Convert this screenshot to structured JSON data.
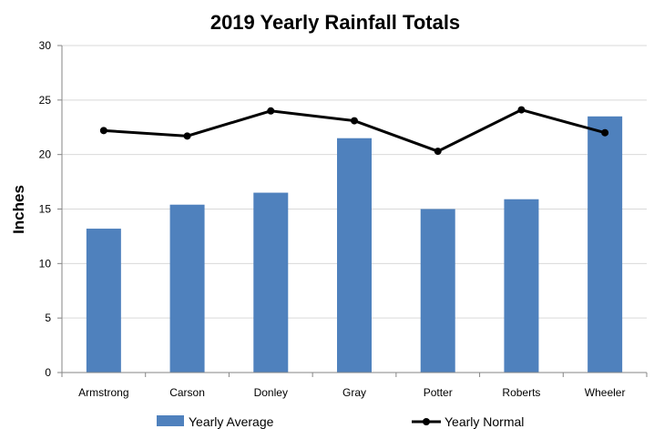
{
  "chart_data": {
    "type": "bar",
    "title": "2019 Yearly Rainfall Totals",
    "xlabel": "",
    "ylabel": "Inches",
    "ylim": [
      0,
      30
    ],
    "yticks": [
      0,
      5,
      10,
      15,
      20,
      25,
      30
    ],
    "grid": true,
    "legend": "bottom",
    "categories": [
      "Armstrong",
      "Carson",
      "Donley",
      "Gray",
      "Potter",
      "Roberts",
      "Wheeler"
    ],
    "series": [
      {
        "name": "Yearly Average",
        "type": "bar",
        "color": "#4f81bd",
        "values": [
          13.2,
          15.4,
          16.5,
          21.5,
          15.0,
          15.9,
          23.5
        ]
      },
      {
        "name": "Yearly Normal",
        "type": "line",
        "color": "#000000",
        "values": [
          22.2,
          21.7,
          24.0,
          23.1,
          20.3,
          24.1,
          22.0
        ]
      }
    ]
  }
}
